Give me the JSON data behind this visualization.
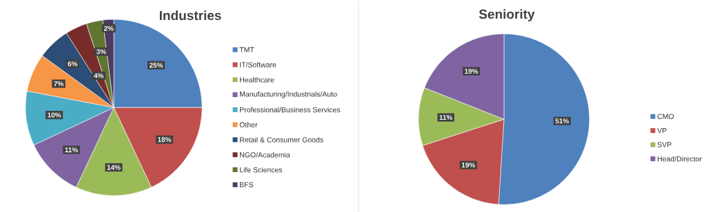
{
  "chart_data": [
    {
      "type": "pie",
      "title": "Industries",
      "legend": "right",
      "categories": [
        "TMT",
        "IT/Software",
        "Healthcare",
        "Manufacturing/Industrials/Auto",
        "Professional/Business Services",
        "Other",
        "Retail & Consumer Goods",
        "NGO/Academia",
        "Life Sciences",
        "BFS"
      ],
      "values": [
        25,
        18,
        14,
        11,
        10,
        7,
        6,
        4,
        3,
        2
      ],
      "value_labels": [
        "25%",
        "18%",
        "14%",
        "11%",
        "10%",
        "7%",
        "6%",
        "4%",
        "3%",
        "2%"
      ],
      "colors": [
        "#4f81bd",
        "#c0504d",
        "#9bbb59",
        "#8064a2",
        "#4bacc6",
        "#f79646",
        "#2c4d75",
        "#772c2a",
        "#5f7530",
        "#4d3b62"
      ]
    },
    {
      "type": "pie",
      "title": "Seniority",
      "legend": "right",
      "categories": [
        "CMO",
        "VP",
        "SVP",
        "Head/Director"
      ],
      "values": [
        51,
        19,
        11,
        19
      ],
      "value_labels": [
        "51%",
        "19%",
        "11%",
        "19%"
      ],
      "colors": [
        "#4f81bd",
        "#c0504d",
        "#9bbb59",
        "#8064a2"
      ]
    }
  ]
}
